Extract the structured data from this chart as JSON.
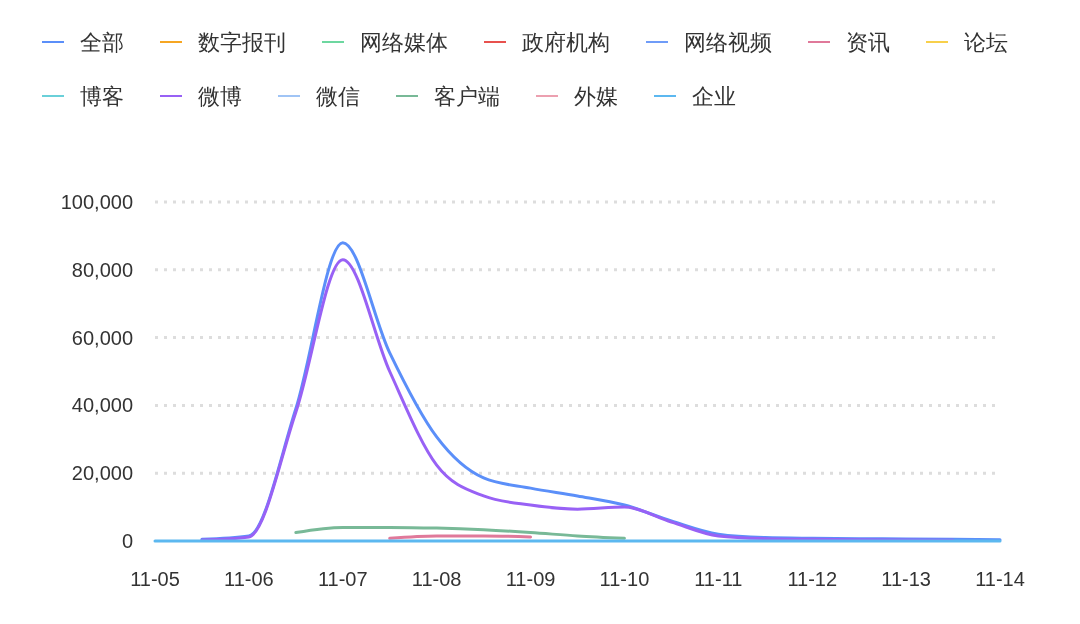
{
  "chart_data": {
    "type": "line",
    "categories": [
      "11-05",
      null,
      "11-06",
      null,
      "11-07",
      null,
      "11-08",
      null,
      "11-09",
      null,
      "11-10",
      null,
      "11-11",
      null,
      "11-12",
      null,
      "11-13",
      null,
      "11-14"
    ],
    "ylim": [
      0,
      100000
    ],
    "yticks": [
      0,
      {
        "value": 20000,
        "label": "20,000"
      },
      {
        "value": 40000,
        "label": "40,000"
      },
      {
        "value": 60000,
        "label": "60,000"
      },
      {
        "value": 80000,
        "label": "80,000"
      },
      {
        "value": 100000,
        "label": "100,000"
      }
    ],
    "grid": "y",
    "legend": "top",
    "marker": "none",
    "line_style": "solid",
    "series": [
      {
        "name": "全部",
        "color": "#5b8ff9",
        "values": [
          null,
          500,
          1500,
          39000,
          88000,
          55500,
          30700,
          18600,
          15600,
          13300,
          10600,
          5900,
          2000,
          1000,
          800,
          700,
          600,
          500,
          400
        ]
      },
      {
        "name": "数字报刊",
        "color": "#f6a623",
        "values": [
          null,
          null,
          null,
          null,
          null,
          null,
          null,
          null,
          null,
          null,
          null,
          null,
          null,
          null,
          null,
          null,
          null,
          null,
          null
        ]
      },
      {
        "name": "网络媒体",
        "color": "#6dd7a0",
        "values": [
          null,
          null,
          null,
          null,
          null,
          null,
          null,
          null,
          null,
          null,
          null,
          null,
          null,
          null,
          null,
          null,
          null,
          null,
          null
        ]
      },
      {
        "name": "政府机构",
        "color": "#e8514e",
        "values": [
          null,
          null,
          null,
          null,
          null,
          null,
          null,
          null,
          null,
          null,
          null,
          null,
          null,
          null,
          null,
          null,
          null,
          null,
          null
        ]
      },
      {
        "name": "网络视频",
        "color": "#6f9cf8",
        "values": [
          null,
          null,
          null,
          null,
          null,
          null,
          null,
          null,
          null,
          null,
          null,
          null,
          null,
          null,
          null,
          null,
          null,
          null,
          null
        ]
      },
      {
        "name": "资讯",
        "color": "#e0799a",
        "values": [
          null,
          null,
          null,
          null,
          null,
          800,
          1500,
          1500,
          1200,
          null,
          null,
          null,
          null,
          null,
          null,
          null,
          null,
          null,
          null
        ]
      },
      {
        "name": "论坛",
        "color": "#f8d04b",
        "values": [
          null,
          null,
          null,
          null,
          null,
          null,
          null,
          null,
          null,
          null,
          null,
          null,
          null,
          null,
          null,
          null,
          null,
          null,
          null
        ]
      },
      {
        "name": "博客",
        "color": "#6ad0d9",
        "values": [
          null,
          null,
          null,
          null,
          null,
          null,
          null,
          null,
          null,
          null,
          null,
          null,
          null,
          null,
          null,
          null,
          null,
          null,
          null
        ]
      },
      {
        "name": "微博",
        "color": "#9861f5",
        "values": [
          null,
          300,
          1200,
          38000,
          83000,
          50000,
          22400,
          13300,
          10600,
          9400,
          10000,
          5600,
          1500,
          700,
          500,
          400,
          300,
          200,
          null
        ]
      },
      {
        "name": "微信",
        "color": "#a0c4f5",
        "values": [
          null,
          null,
          null,
          null,
          null,
          null,
          null,
          null,
          null,
          null,
          null,
          null,
          null,
          null,
          null,
          null,
          null,
          null,
          null
        ]
      },
      {
        "name": "客户端",
        "color": "#78b997",
        "values": [
          null,
          null,
          null,
          2500,
          4000,
          4000,
          3800,
          3300,
          2500,
          1500,
          800,
          null,
          null,
          null,
          null,
          null,
          null,
          null,
          null
        ]
      },
      {
        "name": "外媒",
        "color": "#eca0b0",
        "values": [
          null,
          null,
          null,
          null,
          null,
          null,
          null,
          null,
          null,
          null,
          null,
          null,
          null,
          null,
          null,
          null,
          null,
          null,
          null
        ]
      },
      {
        "name": "企业",
        "color": "#5cb8f0",
        "values": [
          0,
          0,
          0,
          0,
          0,
          0,
          0,
          0,
          0,
          0,
          0,
          0,
          0,
          0,
          0,
          0,
          0,
          0,
          0
        ]
      }
    ]
  }
}
